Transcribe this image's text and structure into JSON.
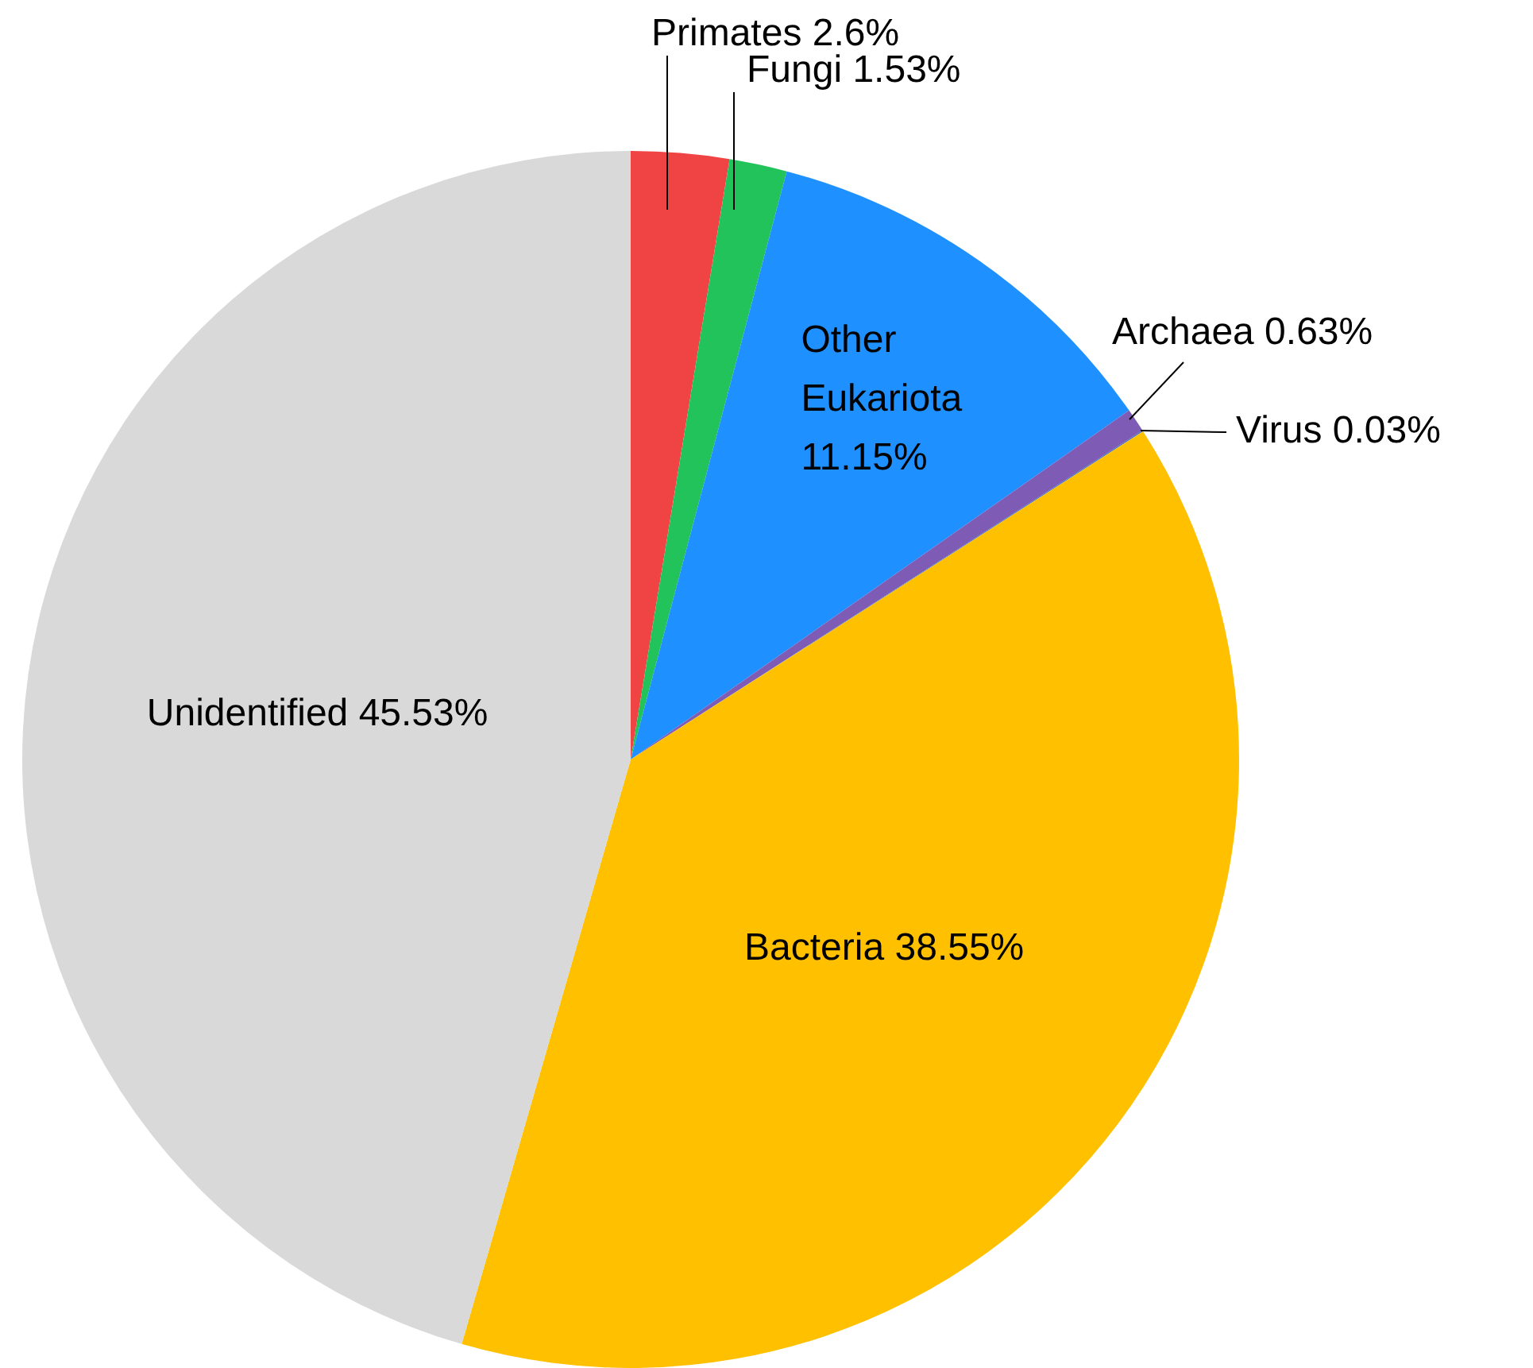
{
  "chart_data": {
    "type": "pie",
    "categories": [
      "Primates",
      "Fungi",
      "Other Eukariota",
      "Archaea",
      "Virus",
      "Bacteria",
      "Unidentified"
    ],
    "values": [
      2.6,
      1.53,
      11.15,
      0.63,
      0.03,
      38.55,
      45.53
    ],
    "value_labels": [
      "2.6%",
      "1.53%",
      "11.15%",
      "0.63%",
      "0.03%",
      "38.55%",
      "45.53%"
    ],
    "colors": [
      "#f04343",
      "#22c35a",
      "#1e90ff",
      "#7e5bb5",
      "#4a6fc0",
      "#ffc000",
      "#d9d9d9"
    ],
    "legend": false
  }
}
